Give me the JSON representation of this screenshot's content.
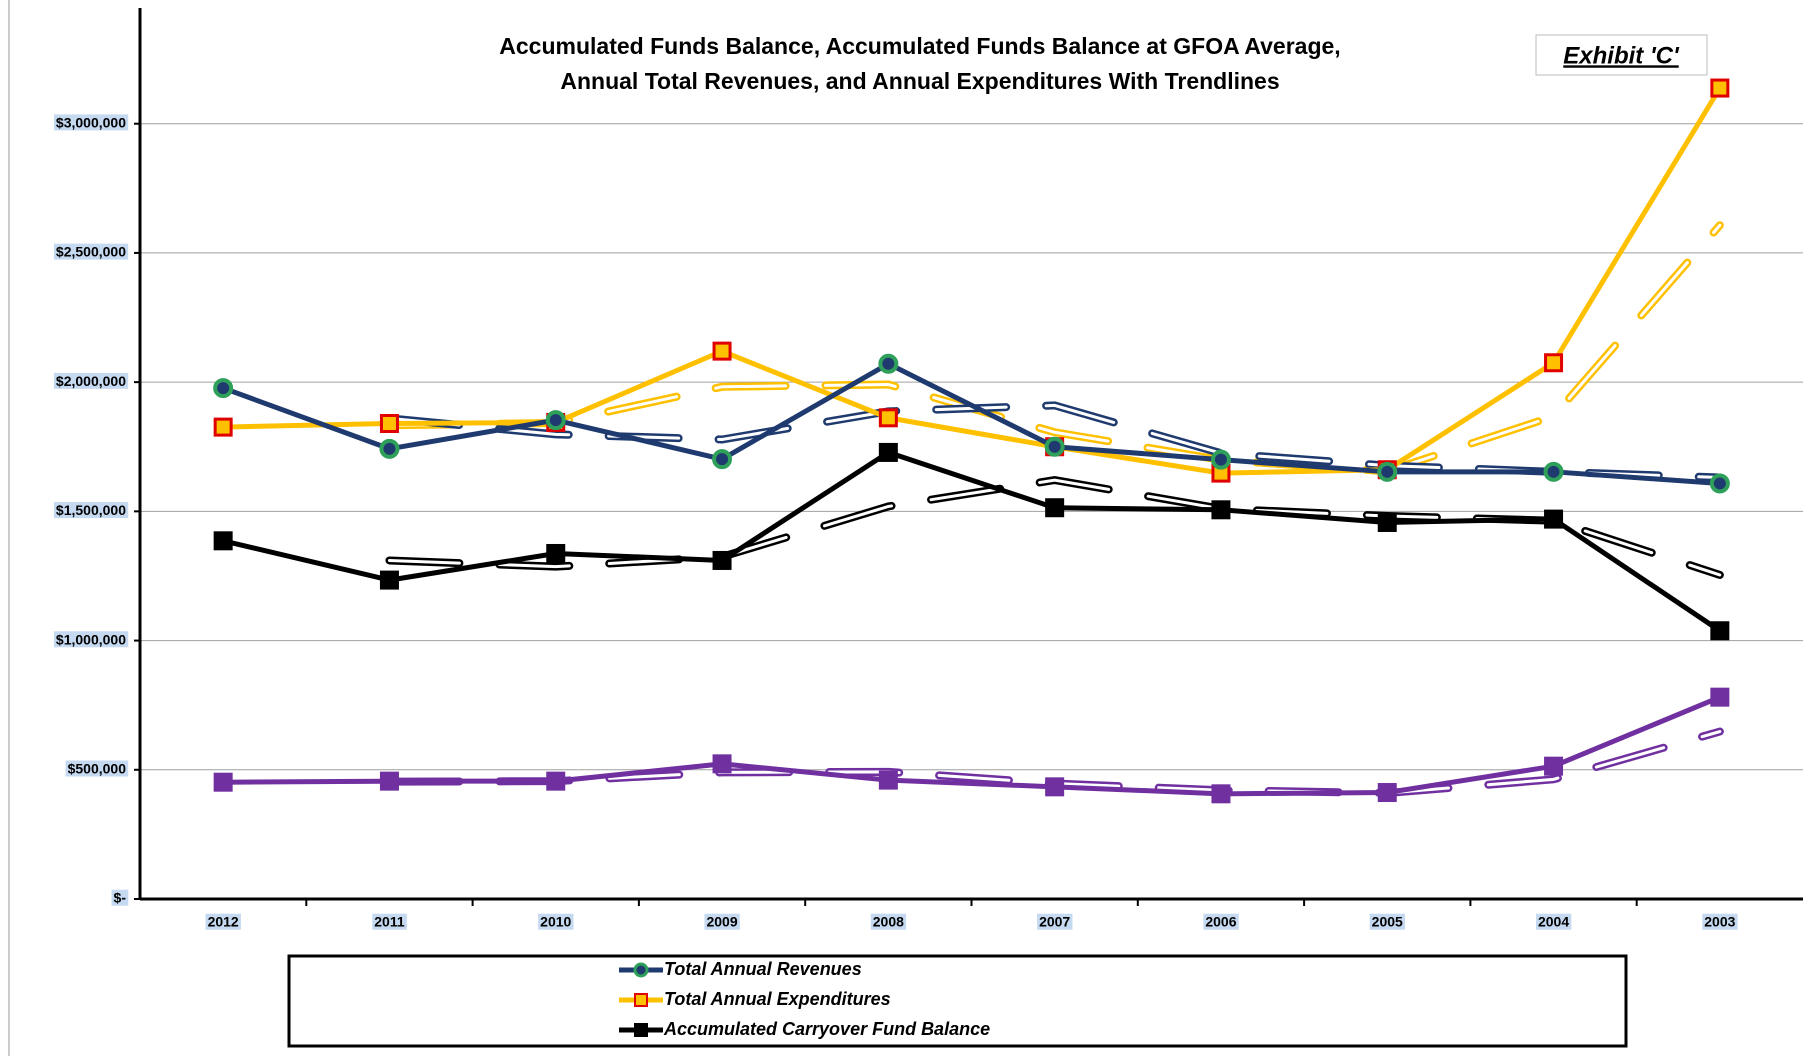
{
  "chart_data": {
    "type": "line",
    "title": [
      "Accumulated Funds Balance, Accumulated Funds Balance at GFOA Average,",
      "Annual Total Revenues, and Annual Expenditures With Trendlines"
    ],
    "exhibit": "Exhibit 'C'",
    "categories": [
      "2012",
      "2011",
      "2010",
      "2009",
      "2008",
      "2007",
      "2006",
      "2005",
      "2004",
      "2003"
    ],
    "ylim": [
      0,
      3440000
    ],
    "yticks": [
      {
        "value": 0,
        "label": "$-"
      },
      {
        "value": 500000,
        "label": "$500,000"
      },
      {
        "value": 1000000,
        "label": "$1,000,000"
      },
      {
        "value": 1500000,
        "label": "$1,500,000"
      },
      {
        "value": 2000000,
        "label": "$2,000,000"
      },
      {
        "value": 2500000,
        "label": "$2,500,000"
      },
      {
        "value": 3000000,
        "label": "$3,000,000"
      }
    ],
    "grid": true,
    "series": [
      {
        "name": "Total Annual Revenues",
        "color": "#1f3a6e",
        "marker": "circle",
        "marker_fill": "#1f3a6e",
        "marker_edge": "#2ea05a",
        "values": [
          1977000,
          1742000,
          1853000,
          1702000,
          2071000,
          1750000,
          1700000,
          1653000,
          1653000,
          1608000
        ],
        "trendline": [
          null,
          1860000,
          1798000,
          1778000,
          1887000,
          1910000,
          1725000,
          1677000,
          1653000,
          1631000
        ]
      },
      {
        "name": "Total Annual Expenditures",
        "color": "#ffc000",
        "marker": "square",
        "marker_fill": "#ffc000",
        "marker_edge": "#e00000",
        "values": [
          1826000,
          1840000,
          1844000,
          2120000,
          1862000,
          1750000,
          1648000,
          1661000,
          2075000,
          3138000
        ],
        "trendline": [
          null,
          1833000,
          1842000,
          1982000,
          1991000,
          1806000,
          1699000,
          1655000,
          1868000,
          2607000
        ]
      },
      {
        "name": "Accumulated Carryover Fund Balance",
        "color": "#000000",
        "marker": "square",
        "marker_fill": "#000000",
        "marker_edge": "#000000",
        "values": [
          1386000,
          1234000,
          1337000,
          1310000,
          1728000,
          1514000,
          1506000,
          1457000,
          1470000,
          1038000
        ],
        "trendline": [
          null,
          1310000,
          1286000,
          1324000,
          1519000,
          1621000,
          1510000,
          1482000,
          1464000,
          1254000
        ]
      },
      {
        "color": "#7030a0",
        "marker": "square",
        "marker_fill": "#7030a0",
        "marker_edge": "#7030a0",
        "values": [
          452000,
          456000,
          456000,
          523000,
          460000,
          434000,
          407000,
          412000,
          514000,
          781000
        ],
        "trendline": [
          null,
          454000,
          456000,
          490000,
          492000,
          447000,
          421000,
          410000,
          463000,
          648000
        ]
      }
    ]
  }
}
